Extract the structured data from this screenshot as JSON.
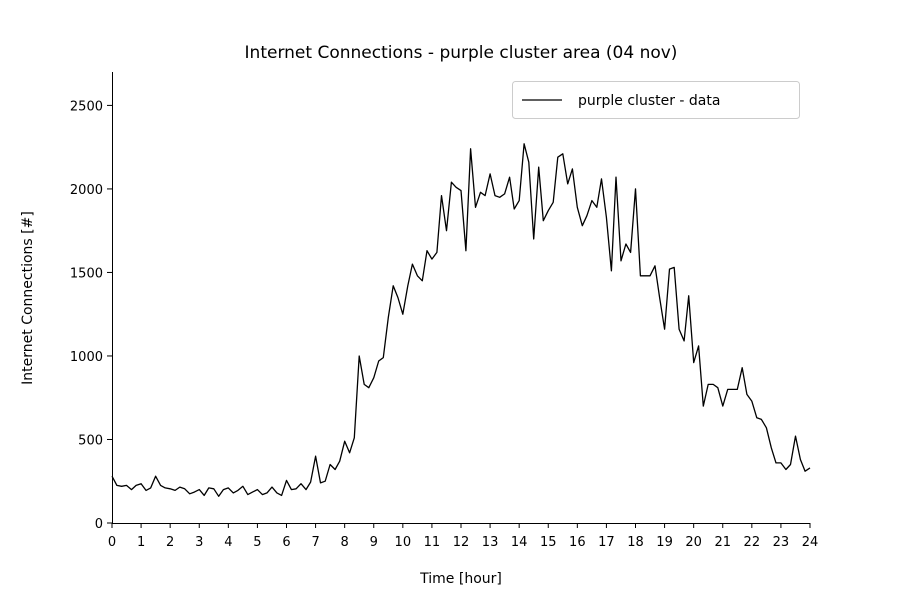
{
  "chart_data": {
    "type": "line",
    "title": "Internet Connections - purple cluster area (04 nov)",
    "xlabel": "Time [hour]",
    "ylabel": "Internet Connections [#]",
    "xlim": [
      0,
      24
    ],
    "ylim": [
      0,
      2700
    ],
    "xticks": [
      "0",
      "1",
      "2",
      "3",
      "4",
      "5",
      "6",
      "7",
      "8",
      "9",
      "10",
      "11",
      "12",
      "13",
      "14",
      "15",
      "16",
      "17",
      "18",
      "19",
      "20",
      "21",
      "22",
      "23",
      "24"
    ],
    "yticks": [
      "0",
      "500",
      "1000",
      "1500",
      "2000",
      "2500"
    ],
    "grid": false,
    "legend_position": "top-right",
    "line_color": "#000000",
    "series": [
      {
        "name": "purple cluster - data",
        "x": [
          0,
          0.17,
          0.33,
          0.5,
          0.67,
          0.83,
          1,
          1.17,
          1.33,
          1.5,
          1.67,
          1.83,
          2,
          2.17,
          2.33,
          2.5,
          2.67,
          2.83,
          3,
          3.17,
          3.33,
          3.5,
          3.67,
          3.83,
          4,
          4.17,
          4.33,
          4.5,
          4.67,
          4.83,
          5,
          5.17,
          5.33,
          5.5,
          5.67,
          5.83,
          6,
          6.17,
          6.33,
          6.5,
          6.67,
          6.83,
          7,
          7.17,
          7.33,
          7.5,
          7.67,
          7.83,
          8,
          8.17,
          8.33,
          8.5,
          8.67,
          8.83,
          9,
          9.17,
          9.33,
          9.5,
          9.67,
          9.83,
          10,
          10.17,
          10.33,
          10.5,
          10.67,
          10.83,
          11,
          11.17,
          11.33,
          11.5,
          11.67,
          11.83,
          12,
          12.17,
          12.33,
          12.5,
          12.67,
          12.83,
          13,
          13.17,
          13.33,
          13.5,
          13.67,
          13.83,
          14,
          14.17,
          14.33,
          14.5,
          14.67,
          14.83,
          15,
          15.17,
          15.33,
          15.5,
          15.67,
          15.83,
          16,
          16.17,
          16.33,
          16.5,
          16.67,
          16.83,
          17,
          17.17,
          17.33,
          17.5,
          17.67,
          17.83,
          18,
          18.17,
          18.33,
          18.5,
          18.67,
          18.83,
          19,
          19.17,
          19.33,
          19.5,
          19.67,
          19.83,
          20,
          20.17,
          20.33,
          20.5,
          20.67,
          20.83,
          21,
          21.17,
          21.33,
          21.5,
          21.67,
          21.83,
          22,
          22.17,
          22.33,
          22.5,
          22.67,
          22.83,
          23,
          23.17,
          23.33,
          23.5,
          23.67,
          23.83,
          24
        ],
        "y": [
          280,
          225,
          220,
          225,
          200,
          225,
          235,
          195,
          210,
          280,
          225,
          210,
          205,
          195,
          215,
          205,
          175,
          185,
          200,
          165,
          210,
          205,
          160,
          200,
          210,
          180,
          195,
          220,
          170,
          185,
          200,
          170,
          180,
          215,
          180,
          165,
          255,
          200,
          205,
          235,
          200,
          245,
          400,
          240,
          250,
          350,
          320,
          370,
          490,
          420,
          510,
          1000,
          830,
          810,
          870,
          970,
          990,
          1230,
          1420,
          1350,
          1250,
          1420,
          1550,
          1480,
          1450,
          1630,
          1580,
          1620,
          1960,
          1750,
          2040,
          2010,
          1990,
          1630,
          2240,
          1890,
          1980,
          1960,
          2090,
          1960,
          1950,
          1970,
          2070,
          1880,
          1930,
          2270,
          2160,
          1700,
          2130,
          1810,
          1870,
          1920,
          2190,
          2210,
          2030,
          2120,
          1890,
          1780,
          1840,
          1930,
          1890,
          2060,
          1830,
          1510,
          2070,
          1570,
          1670,
          1620,
          2000,
          1480,
          1480,
          1480,
          1540,
          1350,
          1160,
          1520,
          1530,
          1160,
          1090,
          1360,
          960,
          1060,
          700,
          830,
          830,
          810,
          700,
          800,
          800,
          800,
          930,
          770,
          730,
          630,
          620,
          570,
          450,
          360,
          360,
          320,
          350,
          520,
          380,
          310,
          330
        ]
      }
    ]
  }
}
